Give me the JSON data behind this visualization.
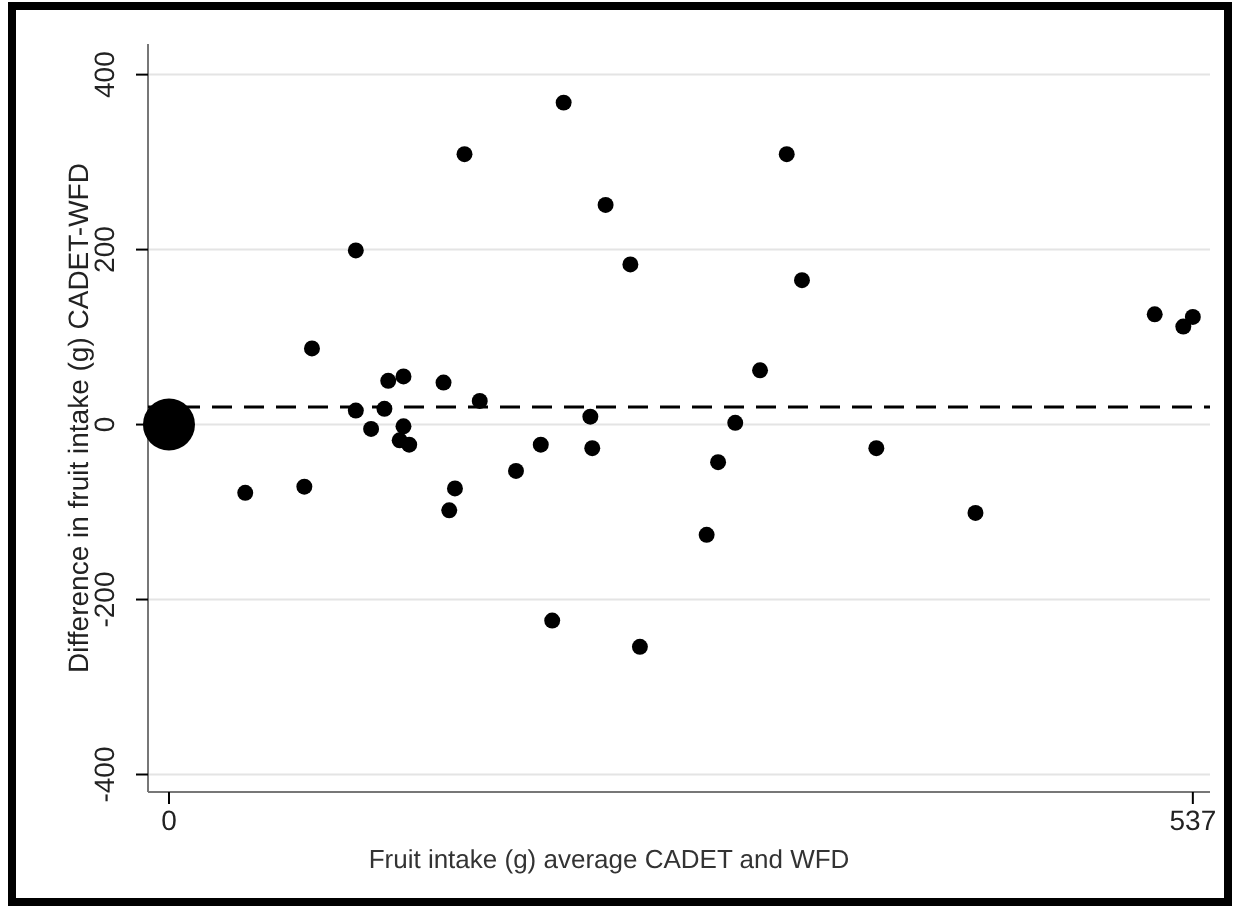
{
  "chart_data": {
    "type": "scatter",
    "xlabel": "Fruit intake (g) average CADET and WFD",
    "ylabel": "Difference in fruit intake (g) CADET-WFD",
    "xlim": [
      -11,
      546
    ],
    "ylim": [
      -420,
      435
    ],
    "xticks": [
      0,
      537
    ],
    "yticks": [
      -400,
      -200,
      0,
      200,
      400
    ],
    "grid": "y",
    "marker": "circle",
    "ref_lines": [
      {
        "axis": "y",
        "value": 20,
        "color": "#000000",
        "line_style": "dashed"
      }
    ],
    "series": [
      {
        "color": "#000000",
        "x": [
          40,
          71,
          75,
          98,
          98,
          106,
          113,
          115,
          123,
          123,
          121,
          126,
          144,
          147,
          150,
          155,
          163,
          182,
          195,
          201,
          207,
          221,
          222,
          229,
          242,
          247,
          282,
          288,
          297,
          310,
          324,
          332,
          371,
          423,
          517,
          532,
          537
        ],
        "values": [
          -78,
          -71,
          87,
          199,
          16,
          -5,
          18,
          50,
          55,
          -2,
          -18,
          -23,
          48,
          -98,
          -73,
          309,
          27,
          -53,
          -23,
          -224,
          368,
          9,
          -27,
          251,
          183,
          -254,
          -126,
          -43,
          2,
          62,
          309,
          165,
          -27,
          -101,
          126,
          112,
          123
        ]
      },
      {
        "type": "bubble",
        "color": "#000000",
        "x": [
          0
        ],
        "values": [
          0
        ],
        "sizes": [
          1
        ]
      }
    ]
  }
}
